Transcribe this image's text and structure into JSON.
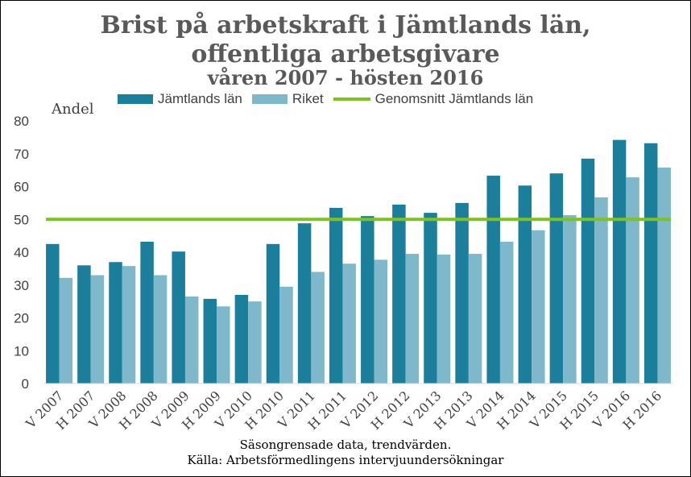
{
  "title": {
    "line1": "Brist på arbetskraft i Jämtlands län,",
    "line2": "offentliga arbetsgivare",
    "line3": "våren 2007 - hösten 2016"
  },
  "legend": {
    "series1": "Jämtlands län",
    "series2": "Riket",
    "average": "Genomsnitt Jämtlands län"
  },
  "footer": {
    "line1": "Säsongrensade data, trendvärden.",
    "line2": "Källa: Arbetsförmedlingens intervjuundersökningar"
  },
  "colors": {
    "series1": "#1B7F9B",
    "series2": "#7FB8CB",
    "average": "#7DC21E",
    "text": "#404040"
  },
  "chart_data": {
    "type": "bar",
    "ylabel": "Andel",
    "ylim": [
      0,
      80
    ],
    "yticks": [
      0,
      10,
      20,
      30,
      40,
      50,
      60,
      70,
      80
    ],
    "grid": false,
    "legend_position": "top",
    "categories": [
      "V 2007",
      "H 2007",
      "V 2008",
      "H 2008",
      "V 2009",
      "H 2009",
      "V 2010",
      "H 2010",
      "V 2011",
      "H 2011",
      "V 2012",
      "H 2012",
      "V 2013",
      "H 2013",
      "V 2014",
      "H 2014",
      "V 2015",
      "H 2015",
      "V 2016",
      "H 2016"
    ],
    "series": [
      {
        "name": "Jämtlands län",
        "values": [
          42.5,
          36,
          37,
          43.2,
          40.2,
          25.8,
          27,
          42.5,
          48.8,
          53.5,
          51,
          54.5,
          52,
          55,
          63.3,
          60.3,
          64,
          68.5,
          74.2,
          73.2
        ]
      },
      {
        "name": "Riket",
        "values": [
          32.2,
          33,
          35.8,
          33,
          26.5,
          23.5,
          25,
          29.5,
          34,
          36.5,
          37.7,
          39.5,
          39.3,
          39.5,
          43.2,
          46.7,
          51.3,
          56.7,
          62.8,
          65.8
        ]
      }
    ],
    "reference_line": {
      "name": "Genomsnitt Jämtlands län",
      "value": 50
    }
  }
}
